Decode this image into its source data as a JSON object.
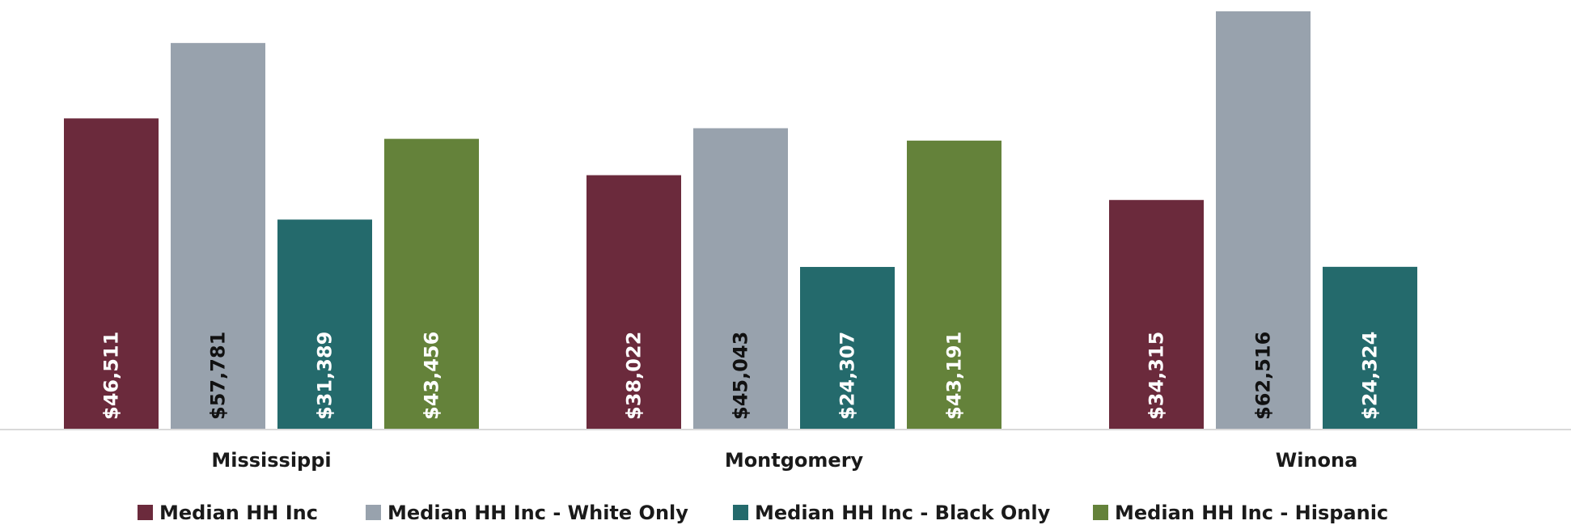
{
  "chart_data": {
    "type": "bar",
    "categories": [
      "Mississippi",
      "Montgomery",
      "Winona"
    ],
    "series": [
      {
        "name": "Median HH Inc",
        "color": "#6b2a3c",
        "label_color": "#ffffff",
        "values": [
          46511,
          38022,
          34315
        ],
        "labels": [
          "$46,511",
          "$38,022",
          "$34,315"
        ]
      },
      {
        "name": "Median HH Inc - White Only",
        "color": "#98a2ad",
        "label_color": "#111111",
        "values": [
          57781,
          45043,
          62516
        ],
        "labels": [
          "$57,781",
          "$45,043",
          "$62,516"
        ]
      },
      {
        "name": "Median HH Inc - Black Only",
        "color": "#246a6c",
        "label_color": "#ffffff",
        "values": [
          31389,
          24307,
          24324
        ],
        "labels": [
          "$31,389",
          "$24,307",
          "$24,324"
        ]
      },
      {
        "name": "Median HH Inc - Hispanic",
        "color": "#64823a",
        "label_color": "#ffffff",
        "values": [
          43456,
          43191,
          null
        ],
        "labels": [
          "$43,456",
          "$43,191",
          ""
        ]
      }
    ],
    "ylim": [
      0,
      63000
    ],
    "grid": false,
    "legend_position": "bottom",
    "axis_color": "#d9d9d9"
  }
}
